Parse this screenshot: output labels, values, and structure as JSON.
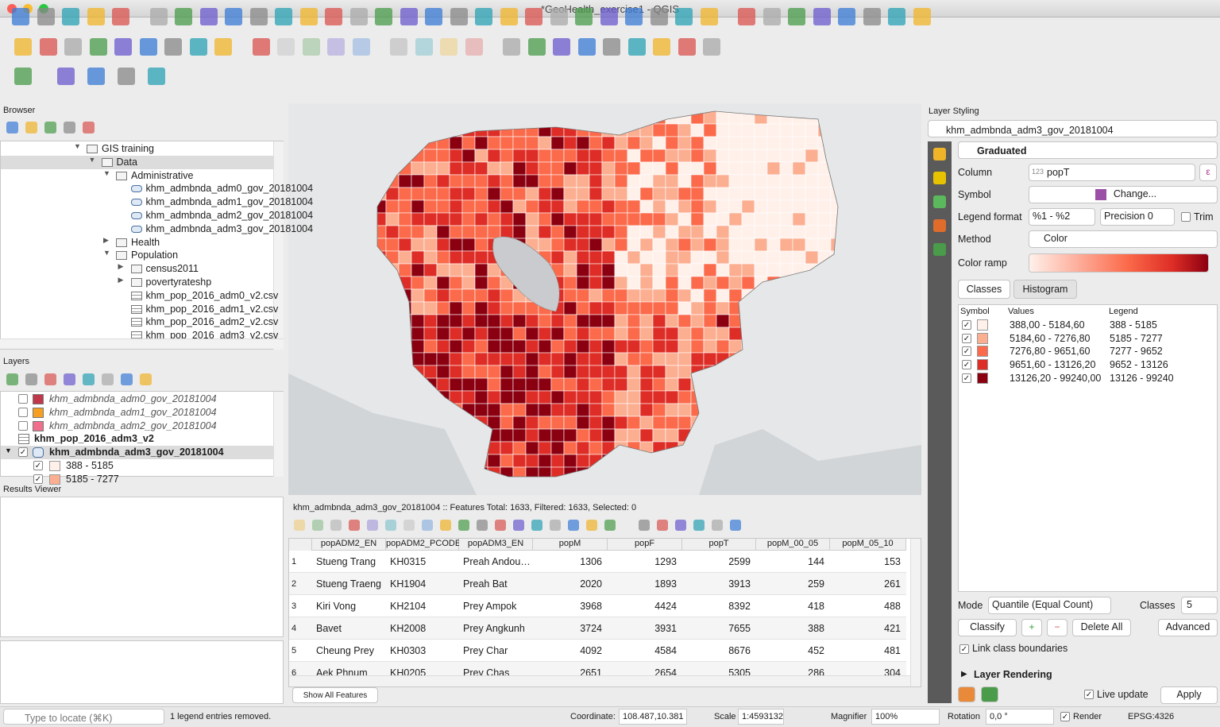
{
  "window": {
    "title": "*GeoHealth_exercise1 - QGIS"
  },
  "browser": {
    "title": "Browser",
    "tree": [
      {
        "label": "GIS training",
        "icon": "folder",
        "expanded": true,
        "children": [
          {
            "label": "Data",
            "icon": "folder",
            "expanded": true,
            "selected": true,
            "children": [
              {
                "label": "Administrative",
                "icon": "folder",
                "expanded": true,
                "children": [
                  {
                    "label": "khm_admbnda_adm0_gov_20181004",
                    "icon": "vector"
                  },
                  {
                    "label": "khm_admbnda_adm1_gov_20181004",
                    "icon": "vector"
                  },
                  {
                    "label": "khm_admbnda_adm2_gov_20181004",
                    "icon": "vector"
                  },
                  {
                    "label": "khm_admbnda_adm3_gov_20181004",
                    "icon": "vector"
                  }
                ]
              },
              {
                "label": "Health",
                "icon": "folder",
                "expanded": false
              },
              {
                "label": "Population",
                "icon": "folder",
                "expanded": true,
                "children": [
                  {
                    "label": "census2011",
                    "icon": "folder",
                    "expanded": false
                  },
                  {
                    "label": "povertyrateshp",
                    "icon": "folder",
                    "expanded": false
                  },
                  {
                    "label": "khm_pop_2016_adm0_v2.csv",
                    "icon": "table"
                  },
                  {
                    "label": "khm_pop_2016_adm1_v2.csv",
                    "icon": "table"
                  },
                  {
                    "label": "khm_pop_2016_adm2_v2.csv",
                    "icon": "table"
                  },
                  {
                    "label": "khm_pop_2016_adm3_v2.csv",
                    "icon": "table"
                  }
                ]
              }
            ]
          }
        ]
      }
    ]
  },
  "layers": {
    "title": "Layers",
    "items": [
      {
        "name": "khm_admbnda_adm0_gov_20181004",
        "checked": false,
        "color": "#c1374a"
      },
      {
        "name": "khm_admbnda_adm1_gov_20181004",
        "checked": false,
        "color": "#f5a020"
      },
      {
        "name": "khm_admbnda_adm2_gov_20181004",
        "checked": false,
        "color": "#ef6f8c"
      },
      {
        "name": "khm_pop_2016_adm3_v2"
      },
      {
        "name": "khm_admbnda_adm3_gov_20181004",
        "checked": true,
        "legend": [
          {
            "label": "388 - 5185",
            "color": "#fff0ea"
          },
          {
            "label": "5185 - 7277",
            "color": "#fcae91"
          }
        ]
      }
    ]
  },
  "results_viewer": {
    "title": "Results Viewer"
  },
  "attribute_table": {
    "title": "khm_admbnda_adm3_gov_20181004 :: Features Total: 1633, Filtered: 1633, Selected: 0",
    "columns": [
      "popADM2_EN",
      "popADM2_PCODE",
      "popADM3_EN",
      "popM",
      "popF",
      "popT",
      "popM_00_05",
      "popM_05_10"
    ],
    "index": [
      1,
      2,
      3,
      4,
      5,
      6
    ],
    "rows": [
      [
        "Stueng Trang",
        "KH0315",
        "Preah Andou…",
        1306,
        1293,
        2599,
        144,
        153
      ],
      [
        "Stueng Traeng",
        "KH1904",
        "Preah Bat",
        2020,
        1893,
        3913,
        259,
        261
      ],
      [
        "Kiri Vong",
        "KH2104",
        "Prey Ampok",
        3968,
        4424,
        8392,
        418,
        488
      ],
      [
        "Bavet",
        "KH2008",
        "Prey Angkunh",
        3724,
        3931,
        7655,
        388,
        421
      ],
      [
        "Cheung Prey",
        "KH0303",
        "Prey Char",
        4092,
        4584,
        8676,
        452,
        481
      ],
      [
        "Aek Phnum",
        "KH0205",
        "Prey Chas",
        2651,
        2654,
        5305,
        286,
        304
      ]
    ],
    "filter_button": "Show All Features"
  },
  "layer_styling": {
    "title": "Layer Styling",
    "layer": "khm_admbnda_adm3_gov_20181004",
    "renderer": "Graduated",
    "column_label": "Column",
    "column_type": "123",
    "column": "popT",
    "symbol_label": "Symbol",
    "symbol_button": "Change...",
    "symbol_color": "#9b4fa5",
    "legend_format_label": "Legend format",
    "legend_format": "%1 - %2",
    "precision": "Precision 0",
    "trim": "Trim",
    "method_label": "Method",
    "method": "Color",
    "color_ramp_label": "Color ramp",
    "tabs": [
      "Classes",
      "Histogram"
    ],
    "headers": [
      "Symbol",
      "Values",
      "Legend"
    ],
    "classes": [
      {
        "values": "388,00 - 5184,60",
        "legend": "388 - 5185",
        "color": "#fff0ea"
      },
      {
        "values": "5184,60 - 7276,80",
        "legend": "5185 - 7277",
        "color": "#fcae91"
      },
      {
        "values": "7276,80 - 9651,60",
        "legend": "7277 - 9652",
        "color": "#fb6a4a"
      },
      {
        "values": "9651,60 - 13126,20",
        "legend": "9652 - 13126",
        "color": "#de2d26"
      },
      {
        "values": "13126,20 - 99240,00",
        "legend": "13126 - 99240",
        "color": "#8b0011"
      }
    ],
    "mode_label": "Mode",
    "mode": "Quantile (Equal Count)",
    "classes_label": "Classes",
    "class_count": 5,
    "classify": "Classify",
    "delete_all": "Delete All",
    "advanced": "Advanced",
    "link_boundaries": "Link class boundaries",
    "layer_rendering": "Layer Rendering",
    "live_update": "Live update",
    "apply": "Apply"
  },
  "status_bar": {
    "locator": "Type to locate (⌘K)",
    "message": "1 legend entries removed.",
    "coordinate_label": "Coordinate:",
    "coordinate": "108.487,10.381",
    "scale_label": "Scale",
    "scale": "1:4593132",
    "magnifier_label": "Magnifier",
    "magnifier": "100%",
    "rotation_label": "Rotation",
    "rotation": "0,0 °",
    "render": "Render",
    "crs": "EPSG:4326"
  }
}
